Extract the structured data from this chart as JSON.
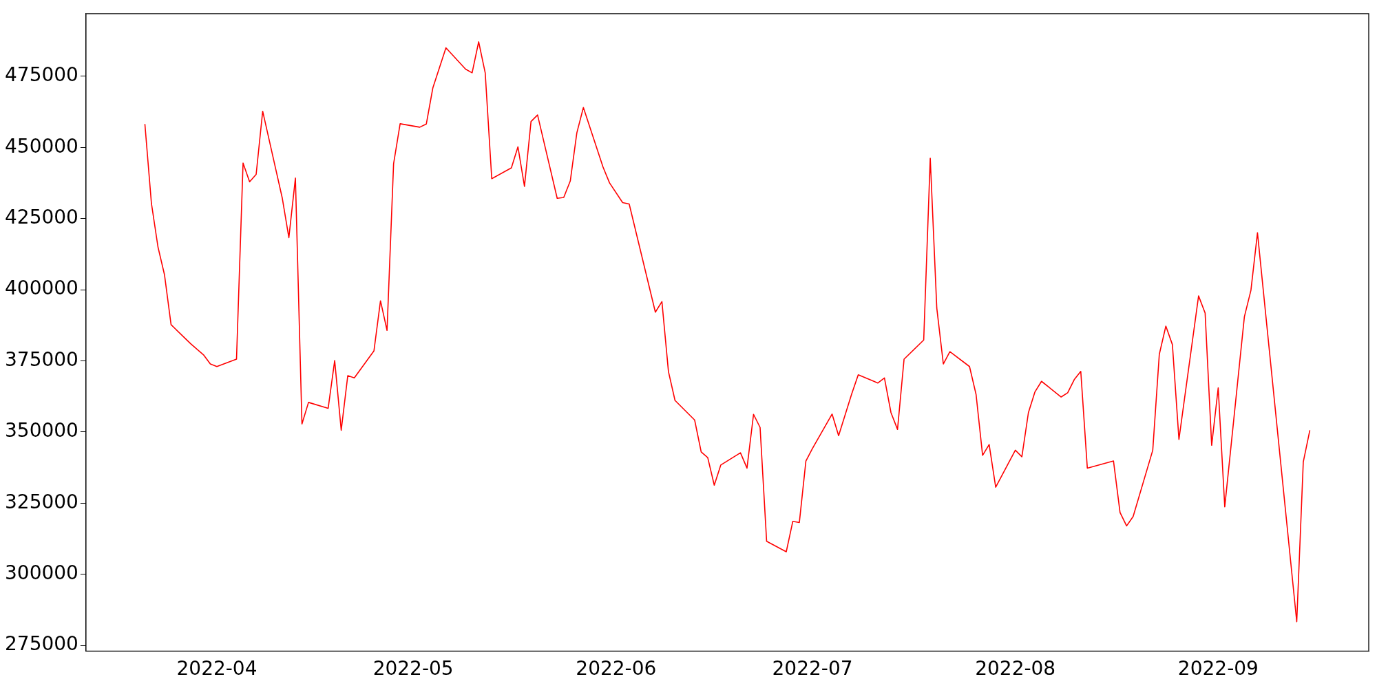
{
  "chart_data": {
    "type": "line",
    "x": [
      "2022-03-21",
      "2022-03-22",
      "2022-03-23",
      "2022-03-24",
      "2022-03-25",
      "2022-03-28",
      "2022-03-30",
      "2022-03-31",
      "2022-04-01",
      "2022-04-04",
      "2022-04-05",
      "2022-04-06",
      "2022-04-07",
      "2022-04-08",
      "2022-04-11",
      "2022-04-12",
      "2022-04-13",
      "2022-04-14",
      "2022-04-15",
      "2022-04-18",
      "2022-04-19",
      "2022-04-20",
      "2022-04-21",
      "2022-04-22",
      "2022-04-25",
      "2022-04-26",
      "2022-04-27",
      "2022-04-28",
      "2022-04-29",
      "2022-05-02",
      "2022-05-03",
      "2022-05-04",
      "2022-05-06",
      "2022-05-09",
      "2022-05-10",
      "2022-05-11",
      "2022-05-12",
      "2022-05-13",
      "2022-05-16",
      "2022-05-17",
      "2022-05-18",
      "2022-05-19",
      "2022-05-20",
      "2022-05-23",
      "2022-05-24",
      "2022-05-25",
      "2022-05-26",
      "2022-05-27",
      "2022-05-30",
      "2022-05-31",
      "2022-06-02",
      "2022-06-03",
      "2022-06-07",
      "2022-06-08",
      "2022-06-09",
      "2022-06-10",
      "2022-06-13",
      "2022-06-14",
      "2022-06-15",
      "2022-06-16",
      "2022-06-17",
      "2022-06-20",
      "2022-06-21",
      "2022-06-22",
      "2022-06-23",
      "2022-06-24",
      "2022-06-27",
      "2022-06-28",
      "2022-06-29",
      "2022-06-30",
      "2022-07-01",
      "2022-07-04",
      "2022-07-05",
      "2022-07-07",
      "2022-07-08",
      "2022-07-11",
      "2022-07-12",
      "2022-07-13",
      "2022-07-14",
      "2022-07-15",
      "2022-07-18",
      "2022-07-19",
      "2022-07-20",
      "2022-07-21",
      "2022-07-22",
      "2022-07-25",
      "2022-07-26",
      "2022-07-27",
      "2022-07-28",
      "2022-07-29",
      "2022-08-01",
      "2022-08-02",
      "2022-08-03",
      "2022-08-04",
      "2022-08-05",
      "2022-08-08",
      "2022-08-09",
      "2022-08-10",
      "2022-08-11",
      "2022-08-12",
      "2022-08-16",
      "2022-08-17",
      "2022-08-18",
      "2022-08-19",
      "2022-08-22",
      "2022-08-23",
      "2022-08-24",
      "2022-08-25",
      "2022-08-26",
      "2022-08-29",
      "2022-08-30",
      "2022-08-31",
      "2022-09-01",
      "2022-09-02",
      "2022-09-05",
      "2022-09-06",
      "2022-09-07",
      "2022-09-13",
      "2022-09-14",
      "2022-09-15"
    ],
    "series": [
      {
        "color": "#ff0000",
        "values": [
          458200,
          430300,
          415000,
          405200,
          387700,
          381000,
          377000,
          373900,
          373000,
          375600,
          444500,
          437900,
          440500,
          462700,
          432100,
          418300,
          439200,
          352800,
          360400,
          358300,
          375100,
          350600,
          369800,
          369000,
          378500,
          396100,
          385700,
          444200,
          458300,
          457100,
          458200,
          470900,
          485000,
          477500,
          476200,
          487100,
          476200,
          439000,
          442800,
          450200,
          436300,
          459100,
          461400,
          432100,
          432400,
          438200,
          455100,
          464000,
          443100,
          437500,
          430600,
          430100,
          392100,
          395800,
          371200,
          361100,
          354200,
          343000,
          341000,
          331300,
          338400,
          342700,
          337300,
          356200,
          351600,
          311600,
          307900,
          318600,
          318200,
          339800,
          344200,
          356300,
          348700,
          363400,
          370100,
          367200,
          369000,
          356800,
          350900,
          375600,
          382300,
          446200,
          393500,
          373900,
          378200,
          373000,
          363200,
          341800,
          345600,
          330600,
          343600,
          341300,
          356800,
          364100,
          367800,
          362300,
          363800,
          368400,
          371300,
          337300,
          339800,
          321700,
          317000,
          320300,
          343600,
          377300,
          387200,
          380700,
          347400,
          397800,
          391800,
          345300,
          365500,
          323700,
          390500,
          399800,
          420000,
          283300,
          339500,
          350600
        ]
      }
    ],
    "xlim": [
      "2022-03-12",
      "2022-09-24"
    ],
    "xticks": [
      "2022-04",
      "2022-05",
      "2022-06",
      "2022-07",
      "2022-08",
      "2022-09"
    ],
    "ylim": [
      273000,
      497000
    ],
    "yticks": [
      275000,
      300000,
      325000,
      350000,
      375000,
      400000,
      425000,
      450000,
      475000
    ]
  }
}
